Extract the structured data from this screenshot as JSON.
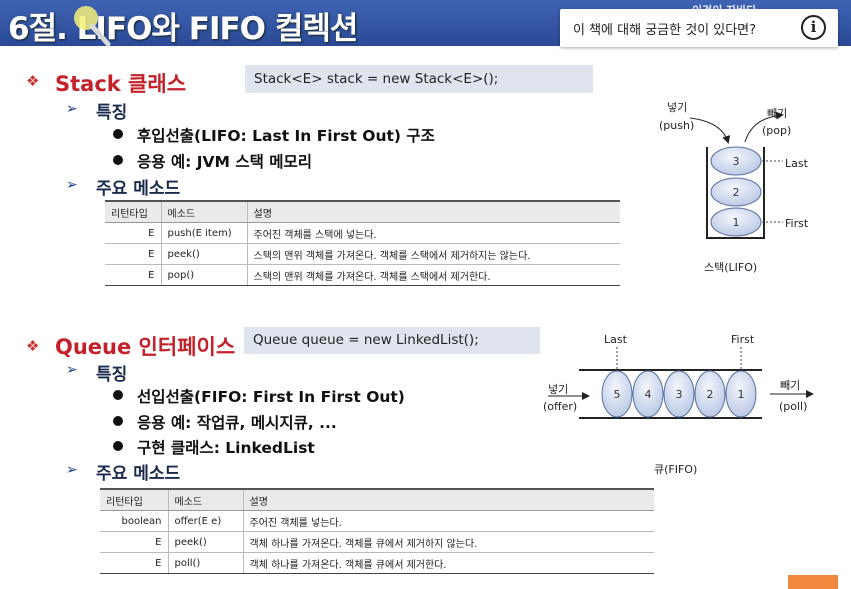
{
  "header": {
    "title": "6절. LIFO와 FIFO 컬렉션",
    "channel_text": "이것이 자바다"
  },
  "question_popup": {
    "text": "이 책에 대해 궁금한 것이 있다면?",
    "info_icon": "i"
  },
  "stack": {
    "title": "Stack 클래스",
    "code": "Stack<E> stack = new Stack<E>();",
    "feature_heading": "특징",
    "features": [
      "후입선출(LIFO: Last In First Out) 구조",
      "응용 예: JVM 스택 메모리"
    ],
    "methods_heading": "주요 메소드",
    "table": {
      "headers": [
        "리턴타입",
        "메소드",
        "설명"
      ],
      "rows": [
        [
          "E",
          "push(E item)",
          "주어진 객체를 스택에 넣는다."
        ],
        [
          "E",
          "peek()",
          "스택의 맨위 객체를 가져온다. 객체를 스택에서 제거하지는 않는다."
        ],
        [
          "E",
          "pop()",
          "스택의 맨위 객체를 가져온다. 객체를 스택에서 제거한다."
        ]
      ]
    },
    "diagram": {
      "push_label": "넣기",
      "push_en": "(push)",
      "pop_label": "빼기",
      "pop_en": "(pop)",
      "items": [
        "3",
        "2",
        "1"
      ],
      "last_label": "Last",
      "first_label": "First",
      "caption": "스택(LIFO)"
    }
  },
  "queue": {
    "title": "Queue 인터페이스",
    "code": "Queue queue = new LinkedList();",
    "feature_heading": "특징",
    "features": [
      "선입선출(FIFO: First In First Out)",
      "응용 예: 작업큐, 메시지큐, ...",
      "구현 클래스: LinkedList"
    ],
    "methods_heading": "주요 메소드",
    "table": {
      "headers": [
        "리턴타입",
        "메소드",
        "설명"
      ],
      "rows": [
        [
          "boolean",
          "offer(E e)",
          "주어진 객체를 넣는다."
        ],
        [
          "E",
          "peek()",
          "객체 하나를 가져온다. 객체를 큐에서 제거하지 않는다."
        ],
        [
          "E",
          "poll()",
          "객체 하나를 가져온다. 객체를 큐에서 제거한다."
        ]
      ]
    },
    "diagram": {
      "last_label": "Last",
      "first_label": "First",
      "offer_label": "넣기",
      "offer_en": "(offer)",
      "poll_label": "빼기",
      "poll_en": "(poll)",
      "items": [
        "5",
        "4",
        "3",
        "2",
        "1"
      ],
      "caption": "큐(FIFO)"
    }
  },
  "colors": {
    "header": "#2f52a8",
    "section_title": "#c3222a",
    "code_bg": "#dfe4ee",
    "ellipse_fill": "#c9d4ea"
  }
}
